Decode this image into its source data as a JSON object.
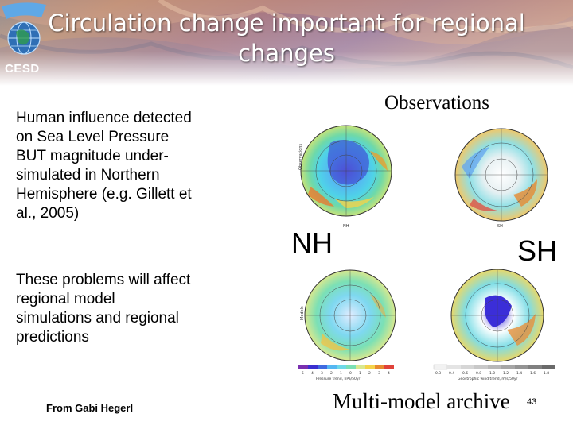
{
  "header": {
    "logo_text": "CESD",
    "title_line1": "Circulation change important for regional",
    "title_line2": "changes"
  },
  "left": {
    "para1_lines": [
      "Human influence detected",
      "on Sea Level Pressure",
      "BUT magnitude under-",
      "simulated in Northern",
      "Hemisphere (e.g. Gillett et",
      "al., 2005)"
    ],
    "para2_lines": [
      "These problems will affect",
      "regional model",
      "simulations and regional",
      "predictions"
    ],
    "credit": "From Gabi Hegerl"
  },
  "figure": {
    "observations_label": "Observations",
    "nh_label": "NH",
    "sh_label": "SH",
    "archive_label": "Multi-model archive",
    "map_small_labels": [
      "Observations",
      "Models",
      "NH",
      "SH"
    ],
    "left_scale_ticks": [
      "5",
      "4",
      "3",
      "2",
      "1",
      "0",
      "1",
      "2",
      "3",
      "4"
    ],
    "left_scale_title": "Pressure trend, hPa/50yr",
    "right_scale_ticks": [
      "0.3",
      "0.4",
      "0.6",
      "0.8",
      "1.0",
      "1.2",
      "1.4",
      "1.6",
      "1.8"
    ],
    "right_scale_title": "Geostrophic wind trend, m/s/50yr"
  },
  "footer": {
    "page_number": "43"
  }
}
